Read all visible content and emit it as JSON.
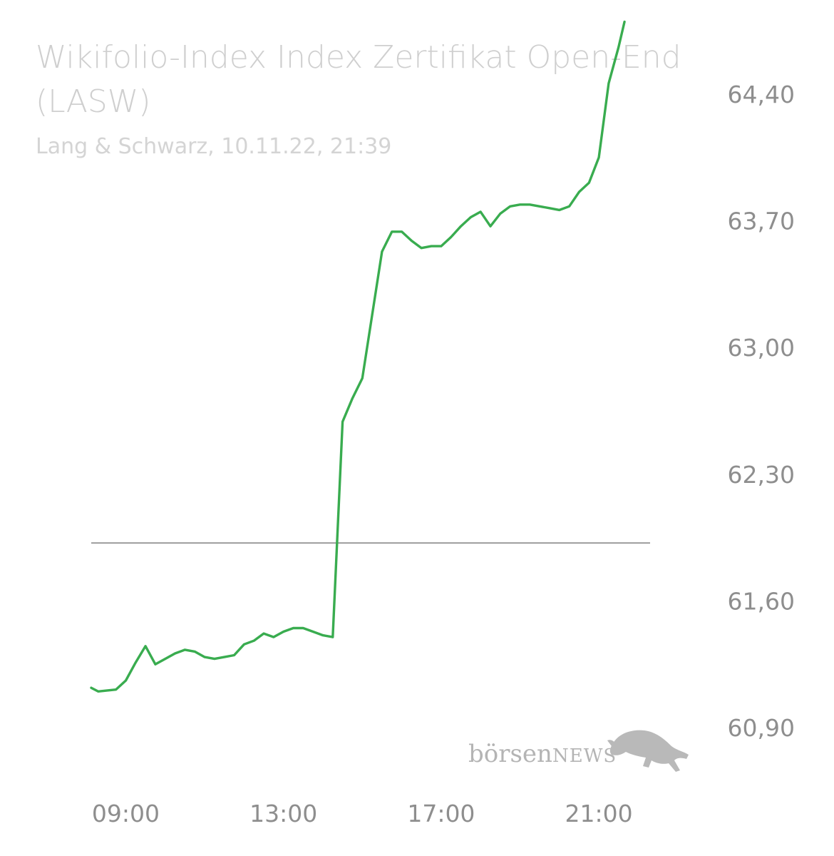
{
  "title": {
    "line1": "Wikifolio-Index Index Zertifikat Open-End",
    "line2": "(LASW)"
  },
  "subtitle": "Lang & Schwarz, 10.11.22, 21:39",
  "logo": {
    "text_light": "börsen",
    "text_strong": "NEWS",
    "icon": "bull-icon"
  },
  "colors": {
    "line": "#39ac4f",
    "reference_line": "#8a8a8a",
    "tick_text": "#8e8e8e",
    "title_text": "#cfcfcf"
  },
  "chart_data": {
    "type": "line",
    "y_tick_labels": [
      "64,40",
      "63,70",
      "63,00",
      "62,30",
      "61,60",
      "60,90"
    ],
    "y_ticks": [
      64.4,
      63.7,
      63.0,
      62.3,
      61.6,
      60.9
    ],
    "x_tick_labels": [
      "09:00",
      "13:00",
      "17:00",
      "21:00"
    ],
    "x_ticks": [
      9.0,
      13.0,
      17.0,
      21.0
    ],
    "xlim": [
      8.16,
      22.3
    ],
    "ylim": [
      60.55,
      64.8
    ],
    "reference_value": 61.92,
    "grid": false,
    "series": [
      {
        "x": [
          7.9,
          8.1,
          8.3,
          8.75,
          9.0,
          9.25,
          9.5,
          9.75,
          10.0,
          10.25,
          10.5,
          10.75,
          11.0,
          11.25,
          11.5,
          11.75,
          12.0,
          12.25,
          12.5,
          12.75,
          13.0,
          13.25,
          13.5,
          13.75,
          14.0,
          14.25,
          14.5,
          14.75,
          15.0,
          15.25,
          15.5,
          15.75,
          16.0,
          16.25,
          16.5,
          16.75,
          17.0,
          17.25,
          17.5,
          17.75,
          18.0,
          18.25,
          18.5,
          18.75,
          19.0,
          19.25,
          19.5,
          19.75,
          20.0,
          20.25,
          20.5,
          20.75,
          21.0,
          21.25,
          21.5,
          21.65
        ],
        "y": [
          61.12,
          61.12,
          61.1,
          61.11,
          61.16,
          61.26,
          61.35,
          61.25,
          61.28,
          61.31,
          61.33,
          61.32,
          61.29,
          61.28,
          61.29,
          61.3,
          61.36,
          61.38,
          61.42,
          61.4,
          61.43,
          61.45,
          61.45,
          61.43,
          61.41,
          61.4,
          62.59,
          62.72,
          62.83,
          63.18,
          63.53,
          63.64,
          63.64,
          63.59,
          63.55,
          63.56,
          63.56,
          63.61,
          63.67,
          63.72,
          63.75,
          63.67,
          63.74,
          63.78,
          63.79,
          63.79,
          63.78,
          63.77,
          63.76,
          63.78,
          63.86,
          63.91,
          64.05,
          64.46,
          64.66,
          64.8
        ]
      }
    ]
  }
}
